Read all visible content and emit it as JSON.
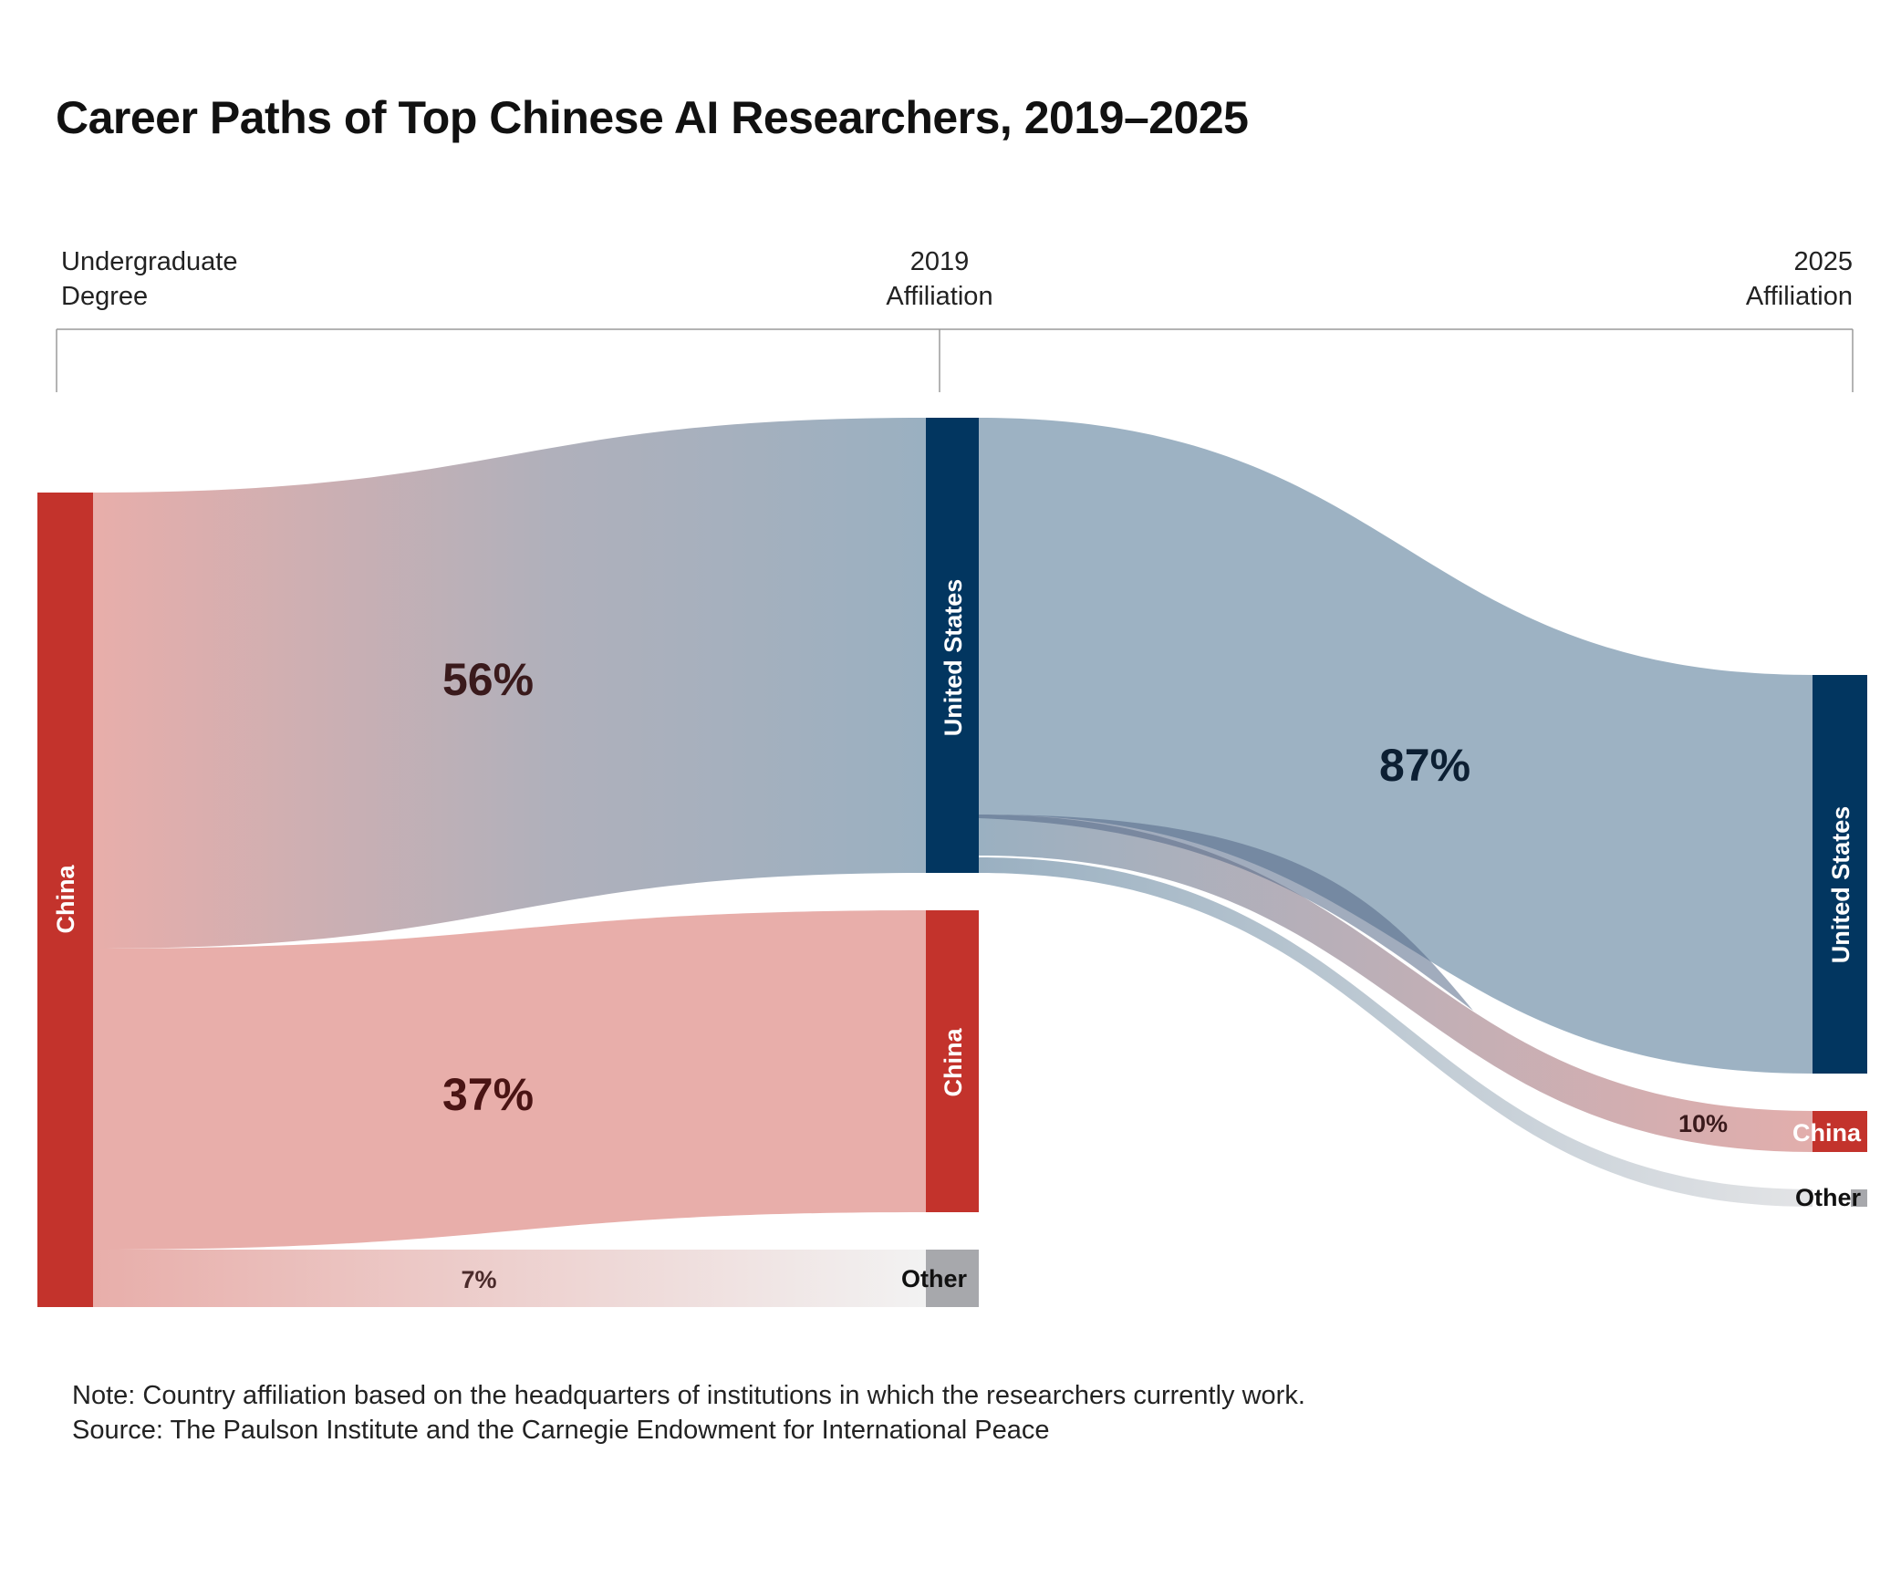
{
  "title": "Career Paths of Top Chinese AI Researchers, 2019–2025",
  "stages": {
    "undergrad": [
      "Undergraduate",
      "Degree"
    ],
    "y2019": [
      "2019",
      "Affiliation"
    ],
    "y2025": [
      "2025",
      "Affiliation"
    ]
  },
  "nodes": {
    "undergrad_china": "China",
    "us_2019": "United States",
    "china_2019": "China",
    "other_2019": "Other",
    "us_2025": "United States",
    "china_2025": "China",
    "other_2025": "Other"
  },
  "chart_data": {
    "type": "sankey",
    "title": "Career Paths of Top Chinese AI Researchers, 2019–2025",
    "stages": [
      "Undergraduate Degree",
      "2019 Affiliation",
      "2025 Affiliation"
    ],
    "links": [
      {
        "source": "China (Undergraduate)",
        "target": "United States (2019)",
        "value": 56,
        "label": "56%"
      },
      {
        "source": "China (Undergraduate)",
        "target": "China (2019)",
        "value": 37,
        "label": "37%"
      },
      {
        "source": "China (Undergraduate)",
        "target": "Other (2019)",
        "value": 7,
        "label": "7%"
      },
      {
        "source": "United States (2019)",
        "target": "United States (2025)",
        "value": 87,
        "label": "87%"
      },
      {
        "source": "United States (2019)",
        "target": "China (2025)",
        "value": 10,
        "label": "10%"
      },
      {
        "source": "United States (2019)",
        "target": "Other (2025)",
        "value": 3,
        "label": ""
      }
    ],
    "colors": {
      "us": "#023660",
      "china": "#c3332c",
      "other": "#a7a8ac"
    }
  },
  "footer": {
    "note": "Note: Country affiliation based on the headquarters of institutions in which the researchers currently work.",
    "source": "Source: The Paulson Institute and the Carnegie Endowment for International Peace"
  }
}
